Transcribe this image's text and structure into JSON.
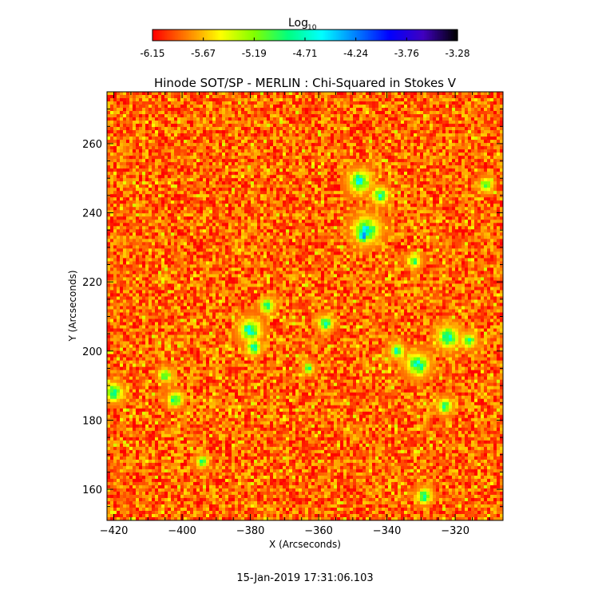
{
  "chart_data": {
    "type": "heatmap",
    "title": "Hinode SOT/SP - MERLIN : Chi-Squared in Stokes V",
    "xlabel": "X (Arcseconds)",
    "ylabel": "Y (Arcseconds)",
    "xlim": [
      -422,
      -306
    ],
    "ylim": [
      151,
      275
    ],
    "x_ticks": [
      -420,
      -400,
      -380,
      -360,
      -340,
      -320
    ],
    "y_ticks": [
      160,
      180,
      200,
      220,
      240,
      260
    ],
    "colorbar": {
      "title_base": "Log",
      "title_subscript": "10",
      "range": [
        -6.15,
        -3.28
      ],
      "tick_values": [
        "-6.15",
        "-5.67",
        "-5.19",
        "-4.71",
        "-4.24",
        "-3.76",
        "-3.28"
      ],
      "colors": [
        "#ff0000",
        "#ff8000",
        "#ffff00",
        "#80ff00",
        "#00ff80",
        "#00ffff",
        "#0080ff",
        "#0000ff",
        "#4000c0",
        "#000000"
      ]
    },
    "background_level": -5.9,
    "patches": [
      {
        "x": -347,
        "y": 233.5,
        "r": 2.0,
        "level": -4.3
      },
      {
        "x": -346,
        "y": 235,
        "r": 3.5,
        "level": -4.7
      },
      {
        "x": -348,
        "y": 249,
        "r": 3.0,
        "level": -4.7
      },
      {
        "x": -342,
        "y": 245,
        "r": 2.2,
        "level": -4.8
      },
      {
        "x": -332,
        "y": 226,
        "r": 1.8,
        "level": -4.9
      },
      {
        "x": -380,
        "y": 206,
        "r": 3.0,
        "level": -4.7
      },
      {
        "x": -375,
        "y": 213,
        "r": 2.0,
        "level": -4.8
      },
      {
        "x": -379,
        "y": 201,
        "r": 2.0,
        "level": -4.7
      },
      {
        "x": -358,
        "y": 208,
        "r": 2.0,
        "level": -4.8
      },
      {
        "x": -331,
        "y": 196,
        "r": 3.0,
        "level": -4.7
      },
      {
        "x": -337,
        "y": 200,
        "r": 2.0,
        "level": -4.8
      },
      {
        "x": -322,
        "y": 204,
        "r": 3.0,
        "level": -4.8
      },
      {
        "x": -316,
        "y": 203,
        "r": 2.0,
        "level": -4.9
      },
      {
        "x": -420,
        "y": 188,
        "r": 2.5,
        "level": -4.8
      },
      {
        "x": -402,
        "y": 186,
        "r": 2.0,
        "level": -4.8
      },
      {
        "x": -405,
        "y": 193,
        "r": 1.8,
        "level": -4.9
      },
      {
        "x": -323,
        "y": 184,
        "r": 2.0,
        "level": -4.9
      },
      {
        "x": -329,
        "y": 158,
        "r": 2.0,
        "level": -4.7
      },
      {
        "x": -311,
        "y": 248,
        "r": 1.8,
        "level": -4.9
      },
      {
        "x": -394,
        "y": 168,
        "r": 1.6,
        "level": -4.9
      },
      {
        "x": -363,
        "y": 195,
        "r": 1.5,
        "level": -4.9
      }
    ]
  },
  "footer": {
    "timestamp": "15-Jan-2019 17:31:06.103"
  }
}
